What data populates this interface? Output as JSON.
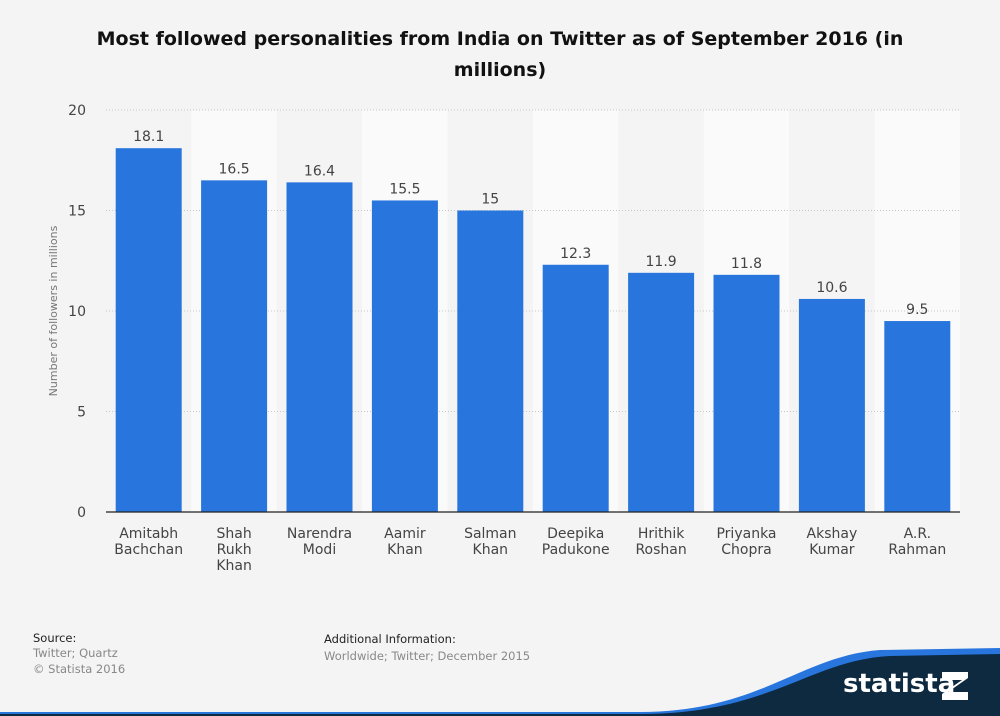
{
  "chart_data": {
    "type": "bar",
    "title": "Most followed personalities from India on Twitter as of September 2016 (in millions)",
    "ylabel": "Number of followers in millions",
    "xlabel": "",
    "ylim": [
      0,
      20
    ],
    "yticks": [
      0,
      5,
      10,
      15,
      20
    ],
    "grid": true,
    "categories": [
      "Amitabh Bachchan",
      "Shah Rukh Khan",
      "Narendra Modi",
      "Aamir Khan",
      "Salman Khan",
      "Deepika Padukone",
      "Hrithik Roshan",
      "Priyanka Chopra",
      "Akshay Kumar",
      "A.R. Rahman"
    ],
    "category_lines": [
      [
        "Amitabh",
        "Bachchan"
      ],
      [
        "Shah",
        "Rukh",
        "Khan"
      ],
      [
        "Narendra",
        "Modi"
      ],
      [
        "Aamir",
        "Khan"
      ],
      [
        "Salman",
        "Khan"
      ],
      [
        "Deepika",
        "Padukone"
      ],
      [
        "Hrithik",
        "Roshan"
      ],
      [
        "Priyanka",
        "Chopra"
      ],
      [
        "Akshay",
        "Kumar"
      ],
      [
        "A.R.",
        "Rahman"
      ]
    ],
    "values": [
      18.1,
      16.5,
      16.4,
      15.5,
      15,
      12.3,
      11.9,
      11.8,
      10.6,
      9.5
    ],
    "value_labels": [
      "18.1",
      "16.5",
      "16.4",
      "15.5",
      "15",
      "12.3",
      "11.9",
      "11.8",
      "10.6",
      "9.5"
    ],
    "bar_color": "#2876dd"
  },
  "footer": {
    "source_label": "Source:",
    "source_lines": [
      "Twitter; Quartz",
      "© Statista 2016"
    ],
    "additional_label": "Additional Information:",
    "additional_text": "Worldwide; Twitter; December 2015"
  },
  "logo": {
    "text": "statista",
    "dark_color": "#0d2a40",
    "accent_color": "#2876dd"
  }
}
